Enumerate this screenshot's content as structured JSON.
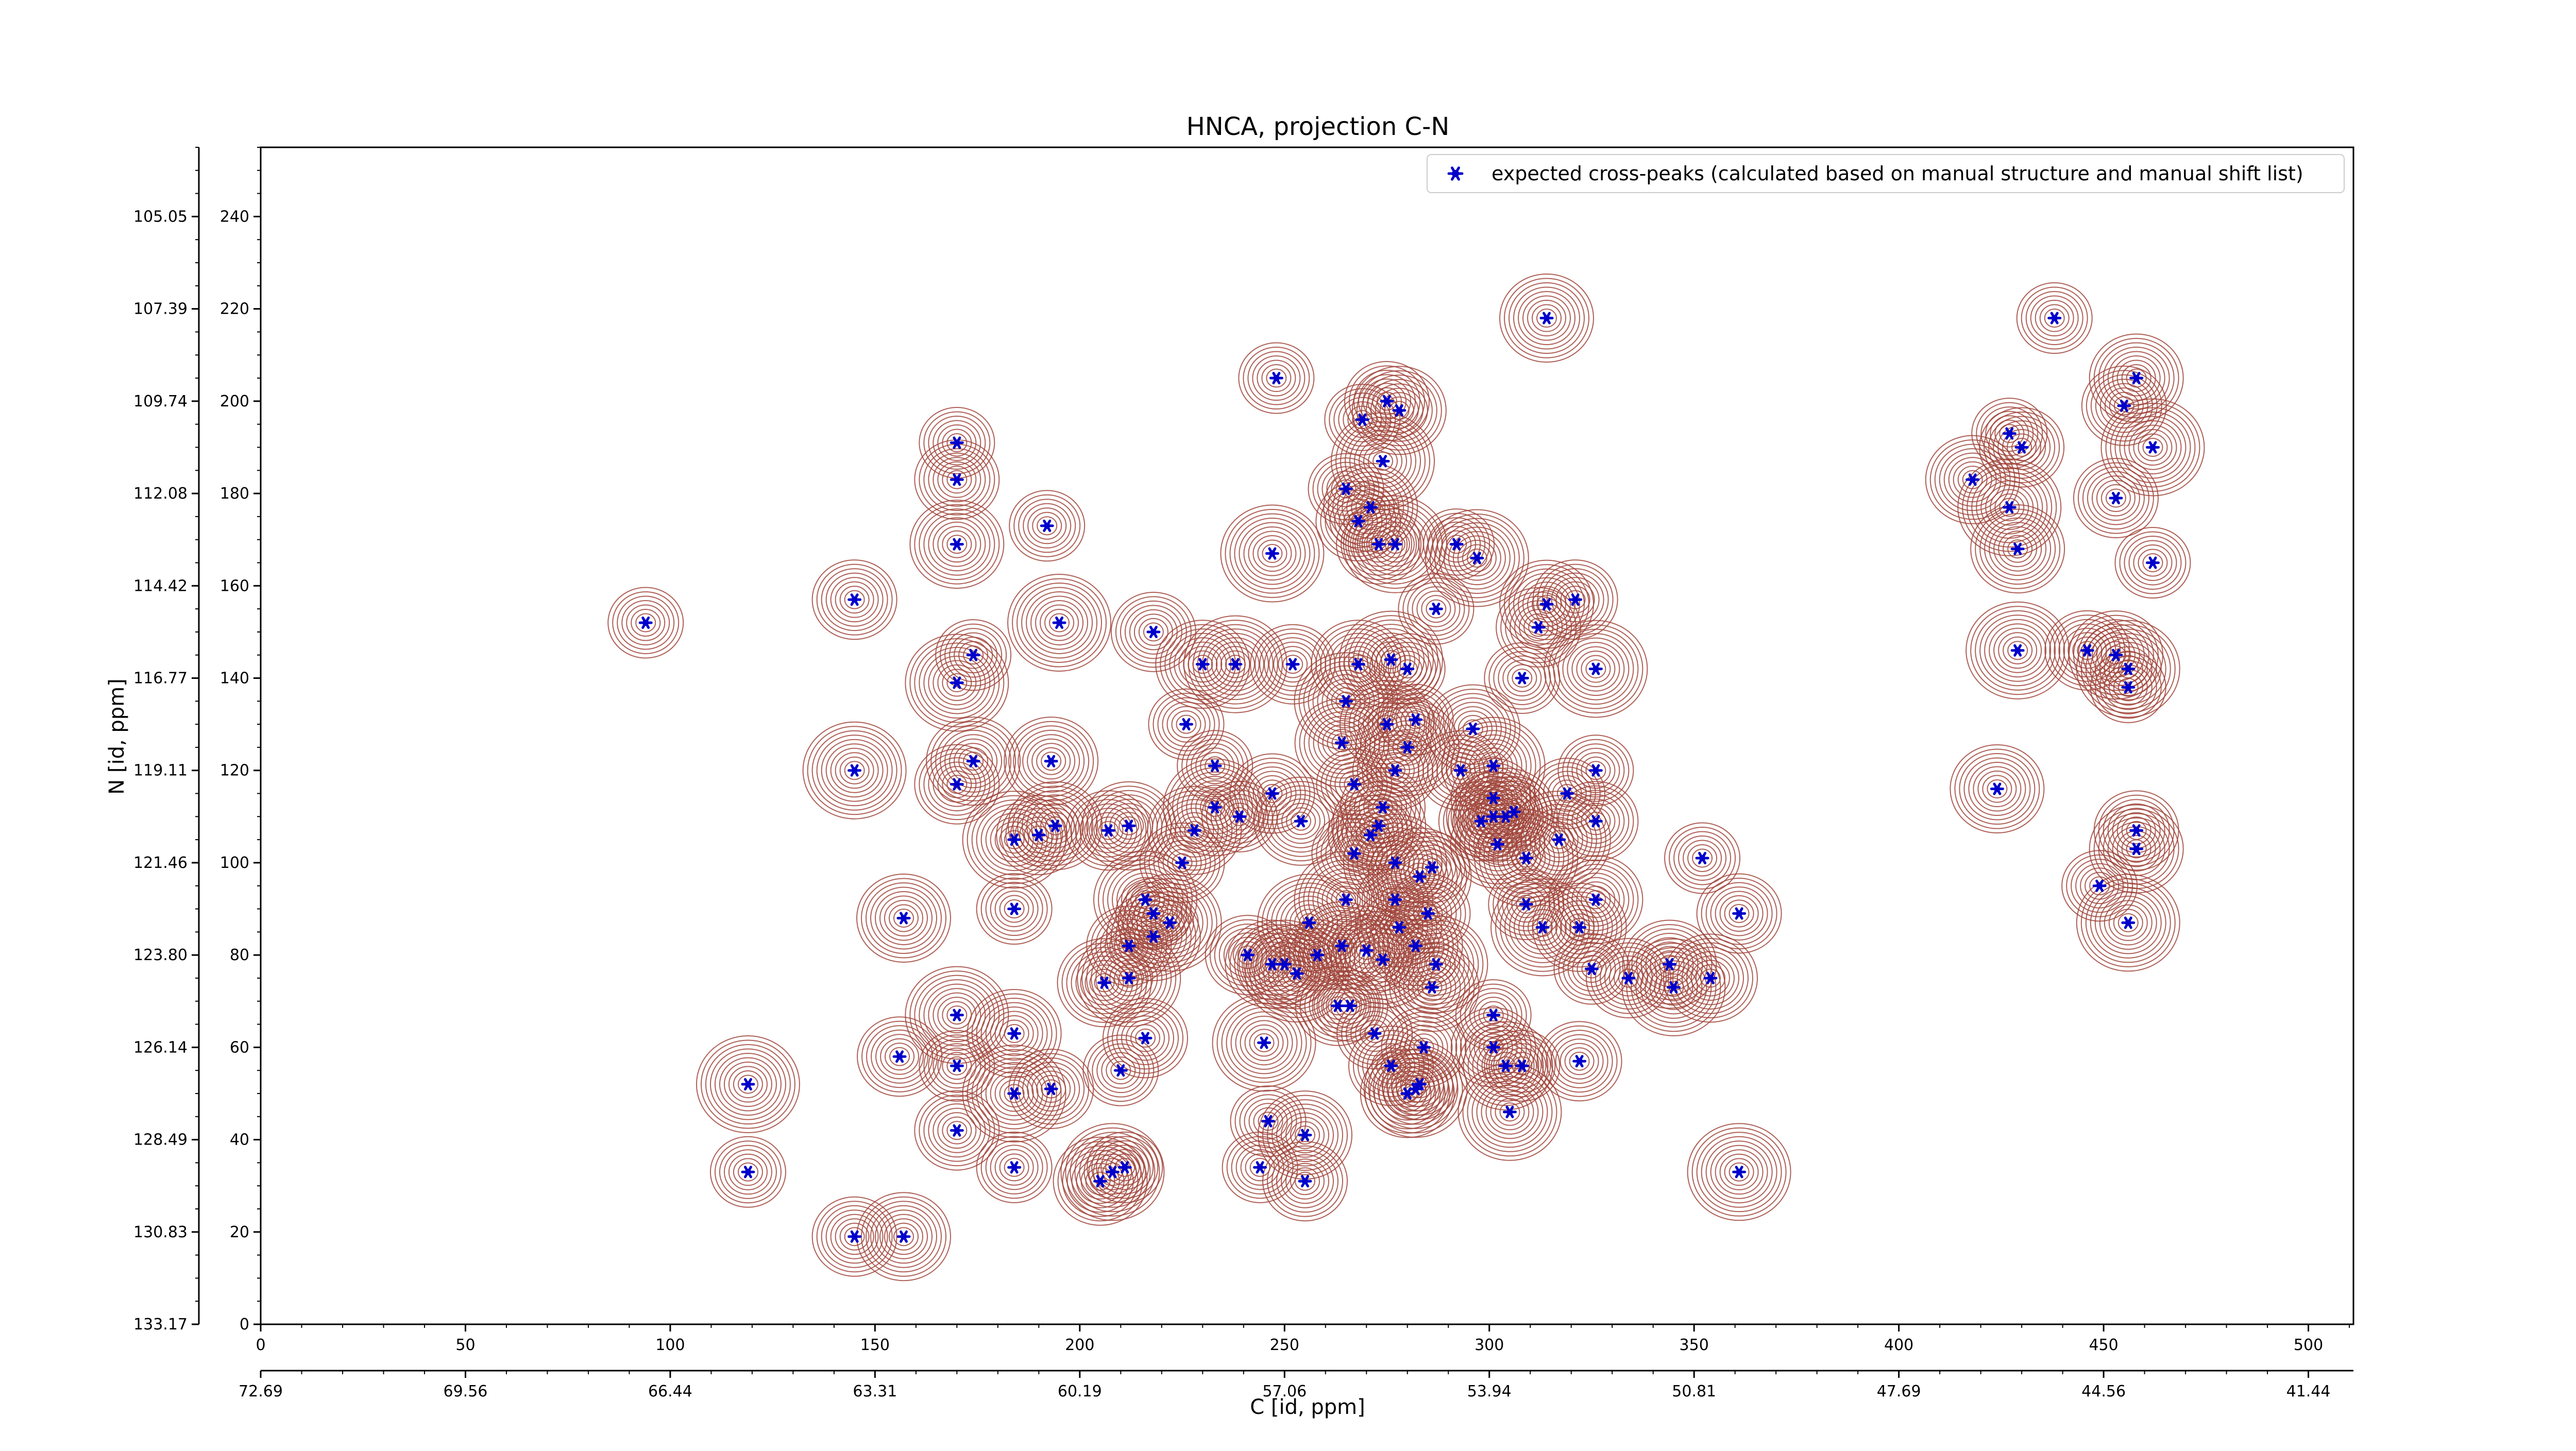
{
  "chart_data": {
    "type": "scatter",
    "title": "HNCA, projection C-N",
    "xlabel": "C [id, ppm]",
    "ylabel": "N [id, ppm]",
    "x_index_range": [
      0,
      511
    ],
    "y_index_range": [
      0,
      255
    ],
    "x_ticks_index": [
      "0",
      "50",
      "100",
      "150",
      "200",
      "250",
      "300",
      "350",
      "400",
      "450",
      "500"
    ],
    "x_ticks_ppm": [
      "72.69",
      "69.56",
      "66.44",
      "63.31",
      "60.19",
      "57.06",
      "53.94",
      "50.81",
      "47.69",
      "44.56",
      "41.44"
    ],
    "y_ticks_index": [
      "0",
      "20",
      "40",
      "60",
      "80",
      "100",
      "120",
      "140",
      "160",
      "180",
      "200",
      "220",
      "240"
    ],
    "y_ticks_ppm": [
      "133.17",
      "130.83",
      "128.49",
      "126.14",
      "123.80",
      "121.46",
      "119.11",
      "116.77",
      "114.42",
      "112.08",
      "109.74",
      "107.39",
      "105.05"
    ],
    "legend": {
      "position": "top-right",
      "entries": [
        "expected cross-peaks (calculated based on manual structure and manual shift list)"
      ]
    },
    "grid": false,
    "colors": {
      "peaks": "#0000cc",
      "contour_positive": "#a0443a",
      "contour_negative": "#3d8a5a"
    },
    "series": [
      {
        "name": "expected cross-peaks (calculated based on manual structure and manual shift list)",
        "points": [
          [
            94,
            152
          ],
          [
            145,
            157
          ],
          [
            157,
            88
          ],
          [
            119,
            52
          ],
          [
            119,
            33
          ],
          [
            145,
            19
          ],
          [
            157,
            19
          ],
          [
            145,
            120
          ],
          [
            170,
            191
          ],
          [
            170,
            183
          ],
          [
            170,
            169
          ],
          [
            170,
            139
          ],
          [
            174,
            145
          ],
          [
            170,
            117
          ],
          [
            174,
            122
          ],
          [
            184,
            105
          ],
          [
            184,
            90
          ],
          [
            190,
            106
          ],
          [
            194,
            108
          ],
          [
            170,
            67
          ],
          [
            170,
            56
          ],
          [
            170,
            42
          ],
          [
            184,
            63
          ],
          [
            184,
            50
          ],
          [
            184,
            34
          ],
          [
            193,
            51
          ],
          [
            193,
            122
          ],
          [
            195,
            152
          ],
          [
            192,
            173
          ],
          [
            156,
            58
          ],
          [
            206,
            74
          ],
          [
            212,
            75
          ],
          [
            210,
            55
          ],
          [
            216,
            62
          ],
          [
            205,
            31
          ],
          [
            208,
            33
          ],
          [
            211,
            34
          ],
          [
            207,
            107
          ],
          [
            212,
            108
          ],
          [
            216,
            92
          ],
          [
            218,
            89
          ],
          [
            212,
            82
          ],
          [
            218,
            84
          ],
          [
            222,
            87
          ],
          [
            226,
            130
          ],
          [
            225,
            100
          ],
          [
            228,
            107
          ],
          [
            233,
            112
          ],
          [
            233,
            121
          ],
          [
            218,
            150
          ],
          [
            230,
            143
          ],
          [
            238,
            143
          ],
          [
            239,
            110
          ],
          [
            241,
            80
          ],
          [
            247,
            78
          ],
          [
            245,
            61
          ],
          [
            246,
            44
          ],
          [
            247,
            115
          ],
          [
            250,
            78
          ],
          [
            253,
            76
          ],
          [
            244,
            34
          ],
          [
            255,
            31
          ],
          [
            255,
            41
          ],
          [
            247,
            167
          ],
          [
            248,
            205
          ],
          [
            252,
            143
          ],
          [
            254,
            109
          ],
          [
            256,
            87
          ],
          [
            258,
            80
          ],
          [
            263,
            69
          ],
          [
            264,
            82
          ],
          [
            265,
            92
          ],
          [
            266,
            69
          ],
          [
            267,
            102
          ],
          [
            264,
            126
          ],
          [
            265,
            135
          ],
          [
            267,
            117
          ],
          [
            274,
            112
          ],
          [
            268,
            143
          ],
          [
            276,
            144
          ],
          [
            280,
            142
          ],
          [
            277,
            120
          ],
          [
            275,
            130
          ],
          [
            280,
            125
          ],
          [
            282,
            131
          ],
          [
            271,
            106
          ],
          [
            273,
            108
          ],
          [
            277,
            100
          ],
          [
            277,
            92
          ],
          [
            278,
            86
          ],
          [
            282,
            82
          ],
          [
            283,
            97
          ],
          [
            286,
            99
          ],
          [
            285,
            89
          ],
          [
            270,
            81
          ],
          [
            274,
            79
          ],
          [
            272,
            63
          ],
          [
            276,
            56
          ],
          [
            280,
            50
          ],
          [
            282,
            51
          ],
          [
            283,
            52
          ],
          [
            284,
            60
          ],
          [
            286,
            73
          ],
          [
            287,
            78
          ],
          [
            265,
            181
          ],
          [
            268,
            174
          ],
          [
            271,
            177
          ],
          [
            274,
            187
          ],
          [
            269,
            196
          ],
          [
            275,
            200
          ],
          [
            278,
            198
          ],
          [
            277,
            169
          ],
          [
            287,
            155
          ],
          [
            293,
            120
          ],
          [
            296,
            129
          ],
          [
            301,
            121
          ],
          [
            308,
            140
          ],
          [
            301,
            114
          ],
          [
            301,
            110
          ],
          [
            304,
            110
          ],
          [
            306,
            111
          ],
          [
            298,
            109
          ],
          [
            302,
            104
          ],
          [
            309,
            101
          ],
          [
            309,
            91
          ],
          [
            312,
            151
          ],
          [
            314,
            156
          ],
          [
            317,
            105
          ],
          [
            319,
            115
          ],
          [
            326,
            109
          ],
          [
            326,
            92
          ],
          [
            326,
            142
          ],
          [
            326,
            120
          ],
          [
            321,
            157
          ],
          [
            322,
            86
          ],
          [
            313,
            86
          ],
          [
            325,
            77
          ],
          [
            334,
            75
          ],
          [
            344,
            78
          ],
          [
            345,
            73
          ],
          [
            352,
            101
          ],
          [
            361,
            89
          ],
          [
            354,
            75
          ],
          [
            361,
            33
          ],
          [
            301,
            67
          ],
          [
            301,
            60
          ],
          [
            304,
            56
          ],
          [
            305,
            46
          ],
          [
            308,
            56
          ],
          [
            322,
            57
          ],
          [
            314,
            218
          ],
          [
            297,
            166
          ],
          [
            292,
            169
          ],
          [
            273,
            169
          ],
          [
            418,
            183
          ],
          [
            427,
            177
          ],
          [
            427,
            193
          ],
          [
            430,
            190
          ],
          [
            429,
            168
          ],
          [
            429,
            146
          ],
          [
            438,
            218
          ],
          [
            446,
            146
          ],
          [
            453,
            145
          ],
          [
            456,
            142
          ],
          [
            456,
            138
          ],
          [
            458,
            107
          ],
          [
            458,
            103
          ],
          [
            456,
            87
          ],
          [
            449,
            95
          ],
          [
            453,
            179
          ],
          [
            458,
            205
          ],
          [
            462,
            190
          ],
          [
            462,
            165
          ],
          [
            455,
            199
          ],
          [
            424,
            116
          ]
        ]
      }
    ]
  }
}
